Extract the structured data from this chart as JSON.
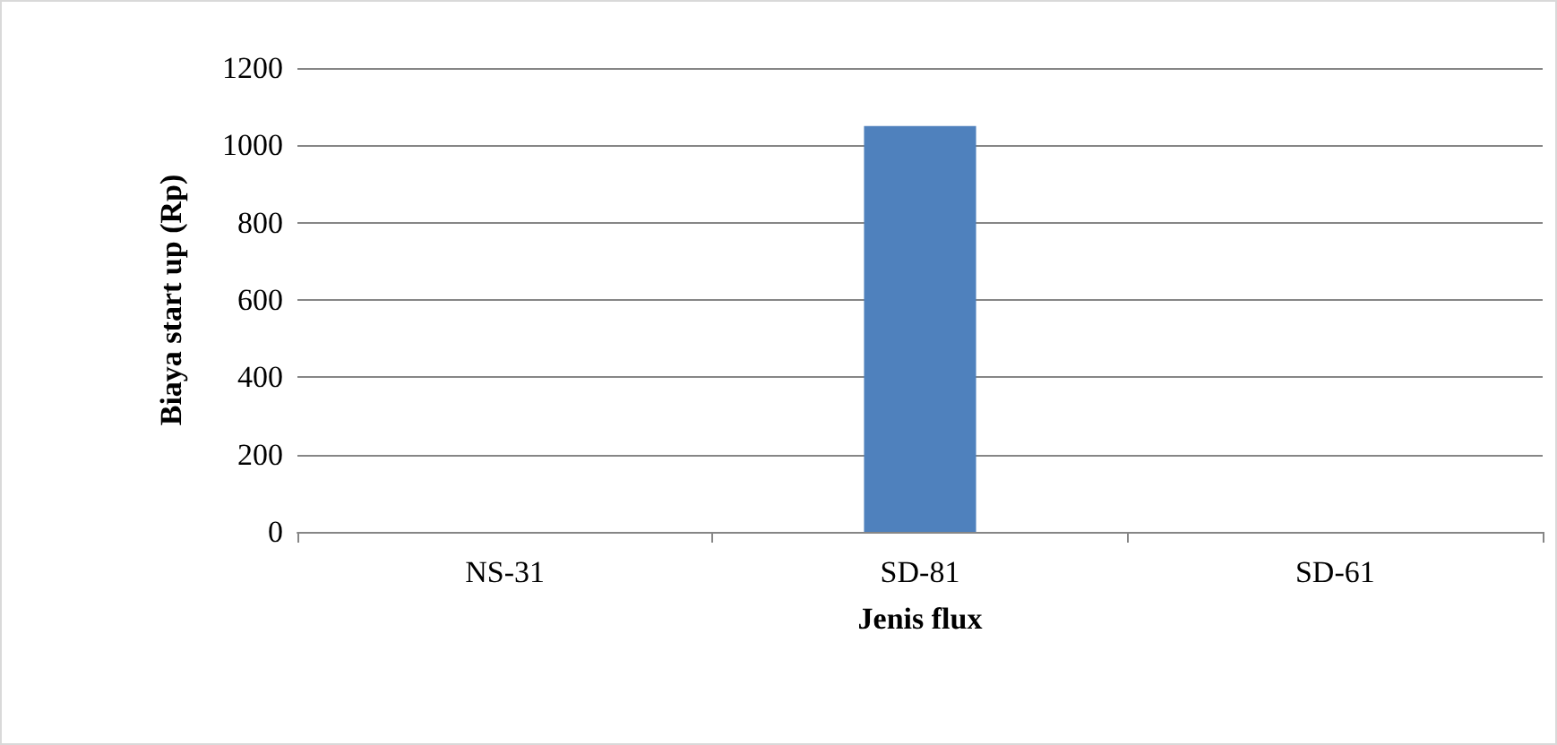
{
  "chart_data": {
    "type": "bar",
    "xlabel": "Jenis flux",
    "ylabel": "Biaya start up (Rp)",
    "categories": [
      "NS-31",
      "SD-81",
      "SD-61"
    ],
    "values": [
      0,
      1050,
      0
    ],
    "color": "#4f81bd",
    "ylim": [
      0,
      1200
    ],
    "yticks": [
      0,
      200,
      400,
      600,
      800,
      1000,
      1200
    ],
    "grid": "y"
  }
}
